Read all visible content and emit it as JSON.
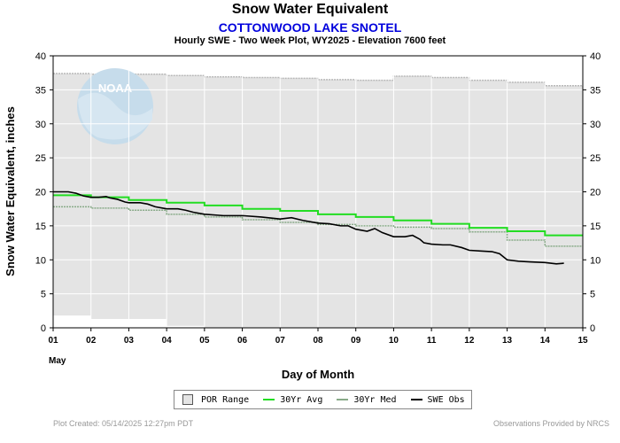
{
  "header": {
    "title": "Snow Water Equivalent",
    "site": "COTTONWOOD LAKE SNOTEL",
    "subtitle": "Hourly SWE - Two Week Plot, WY2025 -  Elevation 7600 feet"
  },
  "footer": {
    "created": "Plot Created: 05/14/2025 12:27pm PDT",
    "credit": "Observations Provided by NRCS"
  },
  "legend": [
    {
      "label": "POR Range",
      "kind": "box",
      "color": "#e4e4e4"
    },
    {
      "label": "30Yr Avg",
      "kind": "line",
      "color": "#22dd22"
    },
    {
      "label": "30Yr Med",
      "kind": "line",
      "color": "#88aa88"
    },
    {
      "label": "SWE Obs",
      "kind": "line",
      "color": "#000000"
    }
  ],
  "logo": {
    "text": "NOAA"
  },
  "colors": {
    "avg": "#22dd22",
    "med": "#88aa88",
    "obs": "#000000",
    "por": "#e4e4e4",
    "grid": "#ffffff",
    "site": "#0000dd"
  },
  "chart_data": {
    "type": "line",
    "title": "Snow Water Equivalent",
    "subtitle": "Hourly SWE - Two Week Plot, WY2025 -  Elevation 7600 feet",
    "xlabel": "Day of Month",
    "ylabel": "Snow Water Equivalent, inches",
    "month_label": "May",
    "xlim": [
      1,
      15
    ],
    "ylim": [
      0,
      40
    ],
    "x_ticks": [
      "01",
      "02",
      "03",
      "04",
      "05",
      "06",
      "07",
      "08",
      "09",
      "10",
      "11",
      "12",
      "13",
      "14",
      "15"
    ],
    "y_ticks": [
      0,
      5,
      10,
      15,
      20,
      25,
      30,
      35,
      40
    ],
    "grid": true,
    "legend_position": "bottom",
    "series": [
      {
        "name": "POR Range",
        "kind": "band",
        "x": [
          1,
          2,
          3,
          4,
          5,
          6,
          7,
          8,
          9,
          10,
          11,
          12,
          13,
          14,
          15
        ],
        "upper": [
          37.4,
          37.3,
          37.3,
          37.1,
          36.9,
          36.8,
          36.7,
          36.5,
          36.4,
          37.0,
          36.8,
          36.4,
          36.1,
          35.6,
          35.6
        ],
        "lower": [
          1.8,
          1.3,
          1.3,
          0.3,
          0,
          0,
          0,
          0,
          0,
          0,
          0,
          0,
          0,
          0,
          0
        ]
      },
      {
        "name": "30Yr Avg",
        "kind": "step",
        "x": [
          1,
          2,
          3,
          4,
          5,
          6,
          7,
          8,
          9,
          10,
          11,
          12,
          13,
          14,
          15
        ],
        "values": [
          19.5,
          19.2,
          18.8,
          18.4,
          18.0,
          17.5,
          17.2,
          16.7,
          16.3,
          15.8,
          15.3,
          14.7,
          14.2,
          13.6,
          13.6
        ]
      },
      {
        "name": "30Yr Med",
        "kind": "step",
        "x": [
          1,
          2,
          3,
          4,
          5,
          6,
          7,
          8,
          9,
          10,
          11,
          12,
          13,
          14,
          15
        ],
        "values": [
          17.8,
          17.6,
          17.3,
          16.7,
          16.3,
          15.9,
          15.5,
          15.2,
          15.0,
          14.8,
          14.6,
          14.1,
          12.9,
          12.0,
          12.0
        ]
      },
      {
        "name": "SWE Obs",
        "kind": "line",
        "x": [
          1.0,
          1.4,
          1.6,
          1.8,
          2.0,
          2.2,
          2.4,
          2.5,
          2.7,
          2.9,
          3.0,
          3.3,
          3.5,
          3.7,
          3.9,
          4.0,
          4.3,
          4.5,
          4.7,
          5.0,
          5.5,
          6.0,
          6.5,
          7.0,
          7.3,
          7.6,
          8.0,
          8.3,
          8.6,
          8.8,
          9.0,
          9.3,
          9.5,
          9.7,
          10.0,
          10.3,
          10.5,
          10.7,
          10.8,
          11.0,
          11.3,
          11.5,
          11.8,
          12.0,
          12.3,
          12.6,
          12.8,
          13.0,
          13.3,
          13.6,
          14.0,
          14.3,
          14.5
        ],
        "values": [
          20.0,
          20.0,
          19.8,
          19.4,
          19.2,
          19.2,
          19.3,
          19.1,
          18.9,
          18.5,
          18.4,
          18.4,
          18.2,
          17.8,
          17.6,
          17.5,
          17.5,
          17.3,
          17.0,
          16.7,
          16.5,
          16.5,
          16.3,
          16.0,
          16.2,
          15.8,
          15.4,
          15.3,
          15.0,
          15.0,
          14.5,
          14.2,
          14.6,
          14.0,
          13.4,
          13.4,
          13.6,
          13.0,
          12.5,
          12.3,
          12.2,
          12.2,
          11.8,
          11.4,
          11.3,
          11.2,
          10.9,
          10.0,
          9.8,
          9.7,
          9.6,
          9.4,
          9.5
        ]
      }
    ]
  }
}
